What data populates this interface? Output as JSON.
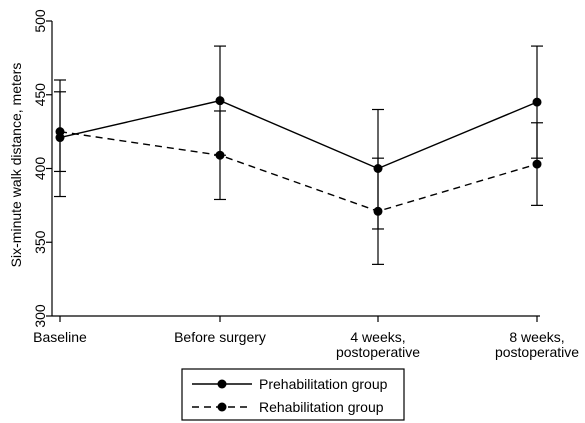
{
  "chart_data": {
    "type": "line",
    "title": "",
    "xlabel": "",
    "ylabel": "Six-minute walk distance, meters",
    "ylim": [
      300,
      500
    ],
    "y_ticks": [
      "300",
      "350",
      "400",
      "450",
      "500"
    ],
    "categories": [
      [
        "Baseline"
      ],
      [
        "Before surgery"
      ],
      [
        "4 weeks,",
        "postoperative"
      ],
      [
        "8 weeks,",
        "postoperative"
      ]
    ],
    "grid": false,
    "legend_position": "bottom",
    "series": [
      {
        "name": "Prehabilitation group",
        "style": "solid",
        "color": "#000000",
        "values": [
          421,
          446,
          400,
          445
        ],
        "lower": [
          381,
          409,
          359,
          407
        ],
        "upper": [
          460,
          483,
          440,
          483
        ]
      },
      {
        "name": "Rehabilitation group",
        "style": "dashed",
        "color": "#000000",
        "values": [
          425,
          409,
          371,
          403
        ],
        "lower": [
          398,
          379,
          335,
          375
        ],
        "upper": [
          452,
          439,
          407,
          431
        ]
      }
    ]
  }
}
